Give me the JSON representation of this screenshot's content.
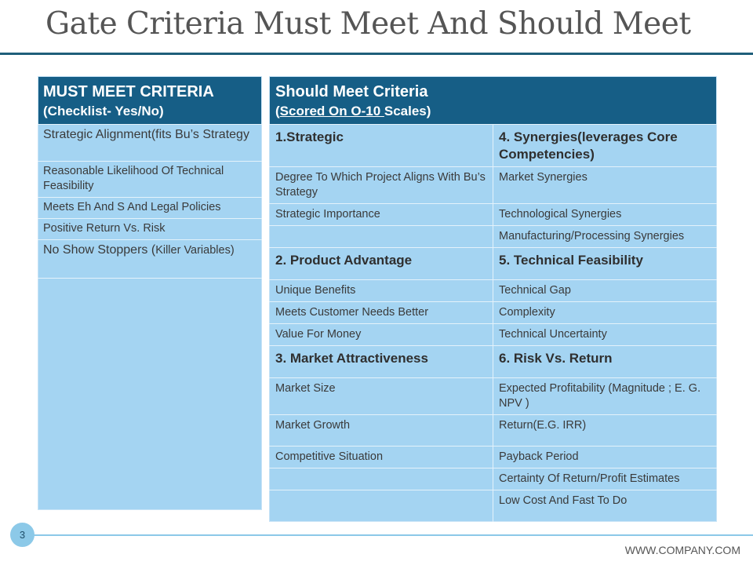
{
  "slide": {
    "title": "Gate Criteria Must Meet And Should Meet",
    "page_number": "3",
    "website": "WWW.COMPANY.COM"
  },
  "must": {
    "header_title": "MUST MEET CRITERIA",
    "header_subtitle": "(Checklist- Yes/No)",
    "items": [
      "Strategic Alignment(fits Bu’s Strategy",
      "Reasonable Likelihood Of Technical Feasibility",
      "Meets Eh And S And Legal Policies",
      "Positive Return Vs. Risk"
    ],
    "item5_main": "No Show Stoppers (",
    "item5_small": "Killer Variables)"
  },
  "should": {
    "header_title": "Should Meet Criteria",
    "header_sub_open": "(",
    "header_sub_underlined": "Scored On O-10 ",
    "header_sub_close": "Scales)",
    "rows": [
      {
        "left": "1.Strategic",
        "right": "4. Synergies(leverages Core Competencies)"
      },
      {
        "left": "Degree To Which Project Aligns With Bu’s Strategy",
        "right": "Market Synergies"
      },
      {
        "left": "Strategic Importance",
        "right": "Technological Synergies"
      },
      {
        "left": "",
        "right": "Manufacturing/Processing Synergies"
      },
      {
        "left": "2. Product Advantage",
        "right": "5. Technical Feasibility"
      },
      {
        "left": "Unique Benefits",
        "right": "Technical Gap"
      },
      {
        "left": "Meets Customer Needs Better",
        "right": "Complexity"
      },
      {
        "left": "Value For Money",
        "right": "Technical Uncertainty"
      },
      {
        "left": "3. Market Attractiveness",
        "right": "6. Risk Vs. Return"
      },
      {
        "left": "Market Size",
        "right": "Expected Profitability (Magnitude ; E. G. NPV )"
      },
      {
        "left": "Market Growth",
        "right": "Return(E.G. IRR)"
      },
      {
        "left": "Competitive Situation",
        "right": "Payback Period"
      },
      {
        "left": "",
        "right": "Certainty Of Return/Profit Estimates"
      },
      {
        "left": "",
        "right": "Low Cost And Fast To Do"
      }
    ]
  }
}
